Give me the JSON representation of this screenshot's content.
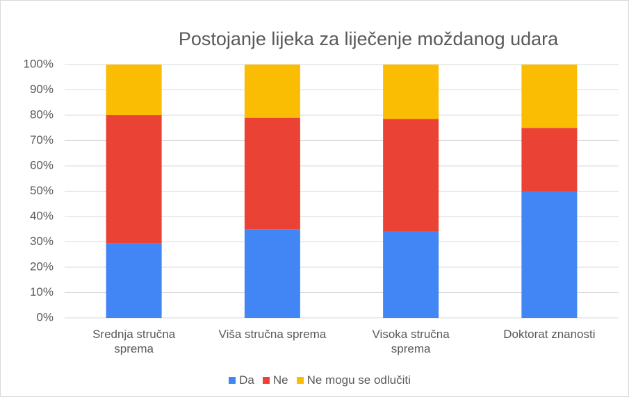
{
  "chart_data": {
    "type": "stacked_bar",
    "title": "Postojanje lijeka za liječenje moždanog udara",
    "categories": [
      "Srednja stručna sprema",
      "Viša stručna sprema",
      "Visoka stručna sprema",
      "Doktorat znanosti"
    ],
    "series": [
      {
        "name": "Da",
        "color": "#4285f4",
        "values": [
          29.5,
          35,
          34,
          50
        ]
      },
      {
        "name": "Ne",
        "color": "#ea4335",
        "values": [
          50.5,
          44,
          44.5,
          25
        ]
      },
      {
        "name": "Ne mogu se odlučiti",
        "color": "#fbbc04",
        "values": [
          20,
          21,
          21.5,
          25
        ]
      }
    ],
    "ylim": [
      0,
      100
    ],
    "yticks": [
      {
        "value": 0,
        "label": "0%"
      },
      {
        "value": 10,
        "label": "10%"
      },
      {
        "value": 20,
        "label": "20%"
      },
      {
        "value": 30,
        "label": "30%"
      },
      {
        "value": 40,
        "label": "40%"
      },
      {
        "value": 50,
        "label": "50%"
      },
      {
        "value": 60,
        "label": "60%"
      },
      {
        "value": 70,
        "label": "70%"
      },
      {
        "value": 80,
        "label": "80%"
      },
      {
        "value": 90,
        "label": "90%"
      },
      {
        "value": 100,
        "label": "100%"
      }
    ],
    "grid": true,
    "legend": "bottom"
  }
}
